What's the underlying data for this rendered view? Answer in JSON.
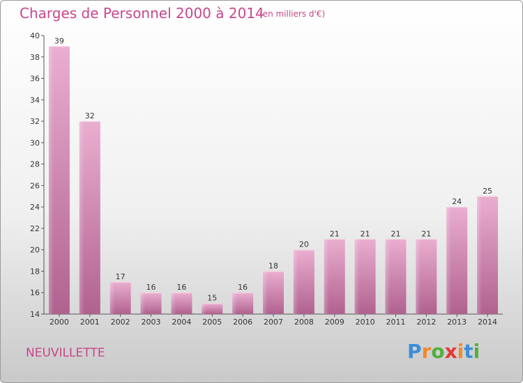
{
  "title": "Charges de Personnel 2000 à 2014",
  "subtitle": "(en milliers d'€)",
  "commune": "NEUVILLETTE",
  "logo": {
    "letters": [
      "P",
      "r",
      "o",
      "x",
      "i",
      "t",
      "i"
    ],
    "colors": [
      "#3a8fd6",
      "#f0892b",
      "#4fb03c",
      "#e53935",
      "#f0892b",
      "#3a8fd6",
      "#4fb03c"
    ]
  },
  "colors": {
    "accent": "#c8468c",
    "bar": "#d98ab6",
    "bar_light": "#e7a9cc",
    "bar_dark": "#b0607f"
  },
  "chart_data": {
    "type": "bar",
    "title": "Charges de Personnel 2000 à 2014",
    "subtitle": "(en milliers d'€)",
    "categories": [
      "2000",
      "2001",
      "2002",
      "2003",
      "2004",
      "2005",
      "2006",
      "2007",
      "2008",
      "2009",
      "2010",
      "2011",
      "2012",
      "2013",
      "2014"
    ],
    "values": [
      39,
      32,
      17,
      16,
      16,
      15,
      16,
      18,
      20,
      21,
      21,
      21,
      21,
      24,
      25
    ],
    "ylim": [
      14,
      40
    ],
    "yticks": [
      14,
      16,
      18,
      20,
      22,
      24,
      26,
      28,
      30,
      32,
      34,
      36,
      38,
      40
    ],
    "grid": false,
    "legend": "none"
  }
}
